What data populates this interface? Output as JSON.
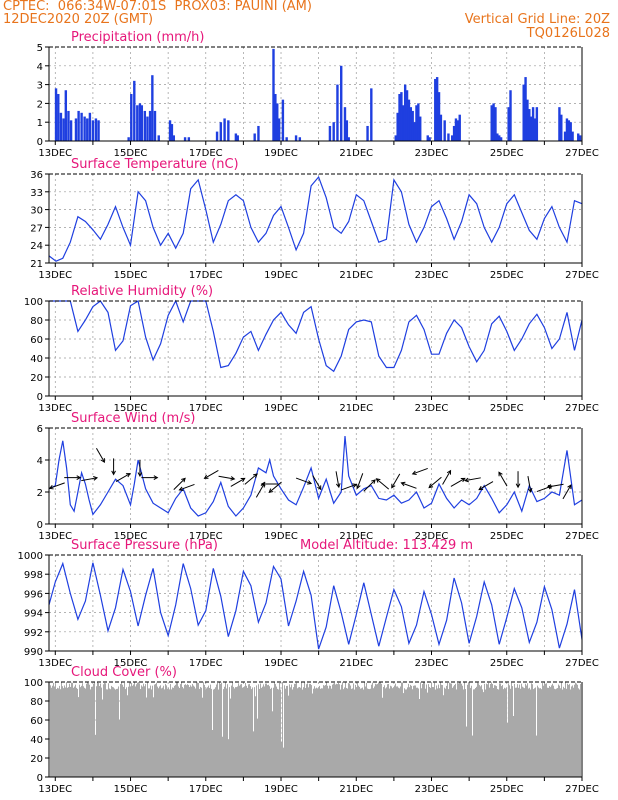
{
  "header": {
    "line1_left": "CPTEC:  066:34W-07:01S  PROX03: PAUINI (AM)",
    "line2_left": "12DEC2020 20Z (GMT)",
    "line2_right": "Vertical Grid Line: 20Z",
    "line3_right": "TQ0126L028"
  },
  "colors": {
    "header": "#e8741c",
    "title": "#e6177a",
    "line": "#1f3fe0",
    "cloud": "#a9a9a9"
  },
  "x_axis": {
    "labels": [
      "13DEC",
      "15DEC",
      "17DEC",
      "19DEC",
      "21DEC",
      "23DEC",
      "25DEC",
      "27DEC"
    ],
    "label_days": [
      13,
      15,
      17,
      19,
      21,
      23,
      25,
      27
    ],
    "grid_days": [
      13,
      14,
      15,
      16,
      17,
      18,
      19,
      20,
      21,
      22,
      23,
      24,
      25,
      26,
      27
    ],
    "start_day": 12.833,
    "end_day": 27.0
  },
  "chart_data": [
    {
      "type": "bar",
      "title": "Precipitation (mm/h)",
      "ylim": [
        0,
        5
      ],
      "yticks": [
        "0",
        "1",
        "2",
        "3",
        "4",
        "5"
      ],
      "x": [
        13.02,
        13.08,
        13.15,
        13.22,
        13.28,
        13.35,
        13.42,
        13.55,
        13.62,
        13.7,
        13.78,
        13.85,
        13.92,
        14.0,
        14.08,
        14.15,
        14.95,
        15.02,
        15.1,
        15.18,
        15.25,
        15.3,
        15.38,
        15.45,
        15.52,
        15.58,
        15.65,
        15.75,
        16.05,
        16.1,
        16.15,
        16.45,
        16.55,
        17.3,
        17.4,
        17.5,
        17.6,
        17.8,
        17.85,
        18.3,
        18.4,
        18.8,
        18.85,
        18.9,
        18.95,
        19.05,
        19.15,
        19.4,
        19.5,
        20.3,
        20.4,
        20.5,
        20.6,
        20.7,
        20.75,
        20.8,
        21.3,
        21.4,
        22.05,
        22.1,
        22.15,
        22.2,
        22.25,
        22.3,
        22.35,
        22.4,
        22.45,
        22.5,
        22.55,
        22.6,
        22.65,
        22.7,
        22.9,
        22.95,
        23.1,
        23.15,
        23.2,
        23.25,
        23.35,
        23.45,
        23.55,
        23.6,
        23.65,
        23.7,
        23.75,
        24.6,
        24.65,
        24.7,
        24.75,
        24.8,
        24.85,
        25.05,
        25.1,
        25.45,
        25.5,
        25.55,
        25.6,
        25.65,
        25.7,
        25.75,
        25.8,
        26.4,
        26.45,
        26.55,
        26.6,
        26.65,
        26.7,
        26.75,
        26.9,
        26.95
      ],
      "values": [
        2.8,
        2.5,
        1.5,
        1.2,
        2.7,
        1.6,
        1.1,
        1.2,
        1.6,
        1.5,
        1.3,
        1.2,
        1.5,
        1.1,
        1.2,
        1.1,
        0.2,
        2.5,
        3.2,
        1.9,
        2.0,
        1.9,
        1.6,
        1.3,
        1.6,
        3.5,
        1.6,
        0.3,
        1.1,
        0.9,
        0.3,
        0.2,
        0.2,
        0.5,
        1.0,
        1.2,
        1.1,
        0.4,
        0.3,
        0.4,
        0.8,
        4.9,
        2.5,
        2.0,
        1.2,
        2.2,
        0.2,
        0.3,
        0.2,
        0.8,
        1.0,
        3.0,
        4.0,
        1.8,
        1.1,
        0.2,
        0.8,
        2.8,
        0.3,
        1.5,
        2.5,
        2.6,
        1.9,
        3.0,
        2.7,
        2.2,
        1.8,
        1.6,
        1.0,
        1.9,
        2.0,
        1.3,
        0.3,
        0.2,
        3.3,
        3.4,
        2.6,
        1.4,
        1.1,
        0.4,
        0.3,
        0.8,
        1.2,
        1.1,
        1.4,
        1.9,
        2.0,
        1.8,
        0.4,
        0.3,
        0.2,
        1.8,
        2.7,
        3.0,
        3.4,
        2.2,
        1.7,
        1.3,
        1.8,
        1.2,
        1.8,
        1.8,
        1.4,
        0.5,
        1.2,
        1.1,
        1.0,
        0.5,
        0.4,
        0.3
      ]
    },
    {
      "type": "line",
      "title": "Surface Temperature (nC)",
      "ylim": [
        21,
        36
      ],
      "yticks": [
        "21",
        "24",
        "27",
        "30",
        "33",
        "36"
      ],
      "x": [
        12.833,
        13.02,
        13.2,
        13.4,
        13.6,
        13.8,
        14.0,
        14.2,
        14.4,
        14.6,
        14.8,
        15.0,
        15.2,
        15.4,
        15.6,
        15.8,
        16.0,
        16.2,
        16.4,
        16.6,
        16.8,
        17.0,
        17.2,
        17.4,
        17.6,
        17.8,
        18.0,
        18.2,
        18.4,
        18.6,
        18.8,
        19.0,
        19.2,
        19.4,
        19.6,
        19.8,
        20.0,
        20.2,
        20.4,
        20.6,
        20.8,
        21.0,
        21.2,
        21.4,
        21.6,
        21.8,
        22.0,
        22.2,
        22.4,
        22.6,
        22.8,
        23.0,
        23.2,
        23.4,
        23.6,
        23.8,
        24.0,
        24.2,
        24.4,
        24.6,
        24.8,
        25.0,
        25.2,
        25.4,
        25.6,
        25.8,
        26.0,
        26.2,
        26.4,
        26.6,
        26.8,
        27.0
      ],
      "values": [
        22.2,
        21.3,
        21.8,
        24.5,
        28.8,
        28.0,
        26.6,
        25.0,
        27.5,
        30.5,
        27.0,
        24.0,
        33.0,
        31.5,
        27.0,
        24.0,
        26.0,
        23.5,
        26.0,
        33.5,
        35.0,
        30.0,
        24.5,
        27.5,
        31.5,
        32.5,
        31.5,
        27.0,
        24.5,
        26.0,
        29.0,
        30.5,
        27.0,
        23.2,
        26.0,
        34.0,
        35.5,
        32.0,
        27.0,
        26.0,
        28.0,
        32.5,
        31.5,
        28.0,
        24.5,
        25.0,
        35.0,
        33.0,
        27.5,
        24.5,
        27.0,
        30.5,
        31.5,
        28.5,
        25.0,
        28.0,
        32.5,
        31.0,
        27.0,
        24.5,
        27.0,
        31.0,
        32.5,
        29.5,
        26.5,
        25.0,
        28.5,
        30.5,
        27.0,
        24.5,
        31.5,
        31.0
      ]
    },
    {
      "type": "line",
      "title": "Relative Humidity (%)",
      "ylim": [
        0,
        100
      ],
      "yticks": [
        "0",
        "20",
        "40",
        "60",
        "80",
        "100"
      ],
      "x": [
        12.833,
        13.02,
        13.2,
        13.4,
        13.6,
        13.8,
        14.0,
        14.2,
        14.4,
        14.6,
        14.8,
        15.0,
        15.2,
        15.4,
        15.6,
        15.8,
        16.0,
        16.2,
        16.4,
        16.6,
        16.8,
        17.0,
        17.2,
        17.4,
        17.6,
        17.8,
        18.0,
        18.2,
        18.4,
        18.6,
        18.8,
        19.0,
        19.2,
        19.4,
        19.6,
        19.8,
        20.0,
        20.2,
        20.4,
        20.6,
        20.8,
        21.0,
        21.2,
        21.4,
        21.6,
        21.8,
        22.0,
        22.2,
        22.4,
        22.6,
        22.8,
        23.0,
        23.2,
        23.4,
        23.6,
        23.8,
        24.0,
        24.2,
        24.4,
        24.6,
        24.8,
        25.0,
        25.2,
        25.4,
        25.6,
        25.8,
        26.0,
        26.2,
        26.4,
        26.6,
        26.8,
        27.0
      ],
      "values": [
        100,
        100,
        100,
        100,
        68,
        80,
        94,
        100,
        88,
        48,
        58,
        95,
        100,
        62,
        38,
        55,
        85,
        100,
        78,
        100,
        100,
        100,
        68,
        30,
        32,
        45,
        62,
        68,
        48,
        65,
        80,
        88,
        75,
        66,
        88,
        94,
        60,
        32,
        26,
        42,
        70,
        78,
        80,
        78,
        42,
        30,
        30,
        48,
        78,
        85,
        70,
        44,
        44,
        66,
        80,
        72,
        52,
        36,
        48,
        76,
        84,
        68,
        48,
        60,
        76,
        86,
        72,
        50,
        60,
        88,
        48,
        80
      ]
    },
    {
      "type": "line",
      "title": "Surface Wind (m/s)",
      "ylim": [
        0,
        6
      ],
      "yticks": [
        "0",
        "2",
        "4",
        "6"
      ],
      "x": [
        12.833,
        13.0,
        13.1,
        13.2,
        13.3,
        13.4,
        13.5,
        13.6,
        13.7,
        13.8,
        13.9,
        14.0,
        14.2,
        14.4,
        14.6,
        14.8,
        15.0,
        15.1,
        15.2,
        15.4,
        15.6,
        15.8,
        16.0,
        16.2,
        16.4,
        16.6,
        16.8,
        17.0,
        17.2,
        17.4,
        17.6,
        17.8,
        18.0,
        18.2,
        18.4,
        18.6,
        18.7,
        18.8,
        19.0,
        19.2,
        19.4,
        19.6,
        19.8,
        20.0,
        20.2,
        20.4,
        20.6,
        20.7,
        20.8,
        21.0,
        21.2,
        21.4,
        21.6,
        21.8,
        22.0,
        22.2,
        22.4,
        22.6,
        22.8,
        23.0,
        23.2,
        23.4,
        23.6,
        23.8,
        24.0,
        24.2,
        24.4,
        24.6,
        24.8,
        25.0,
        25.2,
        25.4,
        25.6,
        25.8,
        26.0,
        26.2,
        26.4,
        26.6,
        26.8,
        27.0
      ],
      "values": [
        2.2,
        2.4,
        4.0,
        5.2,
        3.5,
        1.2,
        0.8,
        2.0,
        3.2,
        2.5,
        1.5,
        0.6,
        1.2,
        2.0,
        2.8,
        2.4,
        1.2,
        2.5,
        4.0,
        2.2,
        1.3,
        1.0,
        0.7,
        1.6,
        2.2,
        1.0,
        0.5,
        0.7,
        1.4,
        2.6,
        1.1,
        0.5,
        1.0,
        1.8,
        3.5,
        3.2,
        4.0,
        3.0,
        2.2,
        1.5,
        1.2,
        2.3,
        3.5,
        1.6,
        2.8,
        1.3,
        2.0,
        5.5,
        3.0,
        1.8,
        2.2,
        2.4,
        1.6,
        1.5,
        1.8,
        1.3,
        1.5,
        2.0,
        1.0,
        1.3,
        2.5,
        1.6,
        1.0,
        1.5,
        1.2,
        1.6,
        2.4,
        1.6,
        0.7,
        1.2,
        2.0,
        0.8,
        2.4,
        1.4,
        1.6,
        2.0,
        1.8,
        4.6,
        1.2,
        1.5
      ]
    },
    {
      "type": "line",
      "title": "Surface Pressure (hPa)",
      "annotation": "Model Altitude: 113.429 m",
      "ylim": [
        990,
        1000
      ],
      "yticks": [
        "990",
        "992",
        "994",
        "996",
        "998",
        "1000"
      ],
      "x": [
        12.833,
        13.0,
        13.2,
        13.4,
        13.6,
        13.8,
        14.0,
        14.2,
        14.4,
        14.6,
        14.8,
        15.0,
        15.2,
        15.4,
        15.6,
        15.8,
        16.0,
        16.2,
        16.4,
        16.6,
        16.8,
        17.0,
        17.2,
        17.4,
        17.6,
        17.8,
        18.0,
        18.2,
        18.4,
        18.6,
        18.8,
        19.0,
        19.2,
        19.4,
        19.6,
        19.8,
        20.0,
        20.2,
        20.4,
        20.6,
        20.8,
        21.0,
        21.2,
        21.4,
        21.6,
        21.8,
        22.0,
        22.2,
        22.4,
        22.6,
        22.8,
        23.0,
        23.2,
        23.4,
        23.6,
        23.8,
        24.0,
        24.2,
        24.4,
        24.6,
        24.8,
        25.0,
        25.2,
        25.4,
        25.6,
        25.8,
        26.0,
        26.2,
        26.4,
        26.6,
        26.8,
        27.0
      ],
      "values": [
        994.8,
        997.2,
        999.1,
        996.0,
        993.3,
        995.2,
        999.2,
        995.8,
        992.1,
        994.5,
        998.5,
        996.2,
        992.6,
        995.8,
        998.6,
        994.0,
        991.6,
        994.8,
        999.1,
        996.5,
        992.7,
        994.2,
        998.6,
        995.7,
        991.5,
        994.2,
        998.3,
        996.8,
        993.0,
        995.0,
        998.8,
        997.5,
        992.6,
        995.2,
        998.3,
        995.8,
        990.2,
        992.5,
        996.8,
        994.0,
        990.7,
        993.8,
        997.1,
        993.8,
        990.5,
        993.5,
        996.4,
        994.6,
        990.8,
        992.7,
        996.2,
        993.8,
        990.7,
        993.2,
        997.6,
        995.0,
        990.8,
        993.6,
        997.2,
        994.8,
        990.7,
        993.5,
        996.5,
        994.5,
        990.9,
        993.0,
        996.7,
        994.3,
        990.3,
        992.8,
        996.4,
        991.2
      ]
    },
    {
      "type": "area",
      "title": "Cloud Cover (%)",
      "ylim": [
        0,
        100
      ],
      "yticks": [
        "0",
        "20",
        "40",
        "60",
        "80",
        "100"
      ]
    }
  ]
}
